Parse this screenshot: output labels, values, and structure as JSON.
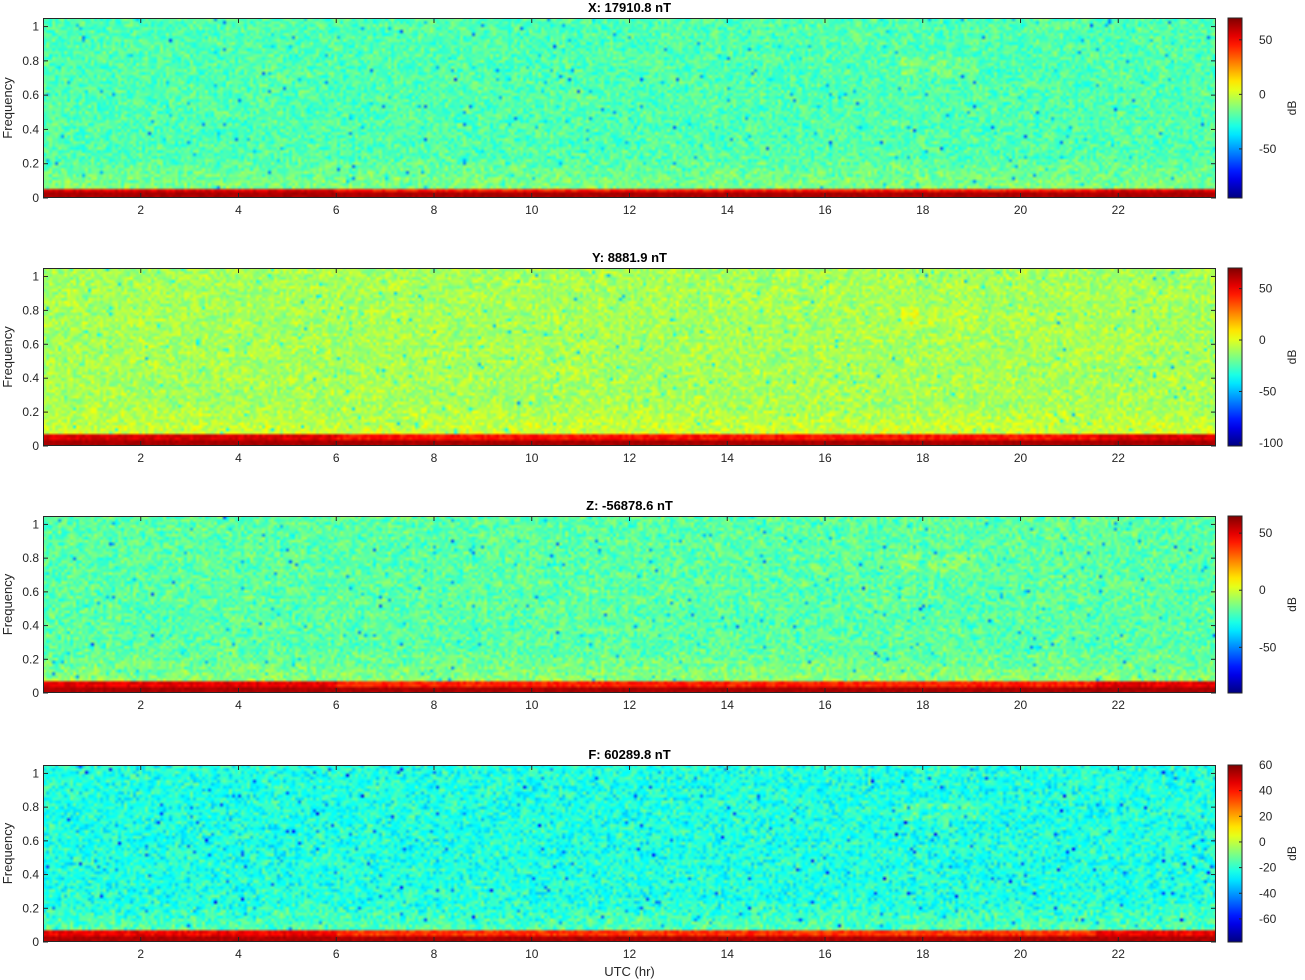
{
  "figure": {
    "xlabel": "UTC (hr)"
  },
  "chart_data": [
    {
      "type": "heatmap",
      "title": "X: 17910.8 nT",
      "xlabel": "",
      "ylabel": "Frequency",
      "xlim": [
        0,
        24
      ],
      "ylim": [
        0,
        1.05
      ],
      "xticks": [
        2,
        4,
        6,
        8,
        10,
        12,
        14,
        16,
        18,
        20,
        22
      ],
      "yticks": [
        0,
        0.2,
        0.4,
        0.6,
        0.8,
        1
      ],
      "colorbar": {
        "label": "dB",
        "clim": [
          -95,
          70
        ],
        "ticks": [
          -50,
          0,
          50
        ]
      },
      "colormap": "jet",
      "background_level_db": -20,
      "low_freq_band": {
        "top_freq": 0.06,
        "peak_db": 70
      }
    },
    {
      "type": "heatmap",
      "title": "Y: 8881.9 nT",
      "xlabel": "",
      "ylabel": "Frequency",
      "xlim": [
        0,
        24
      ],
      "ylim": [
        0,
        1.05
      ],
      "xticks": [
        2,
        4,
        6,
        8,
        10,
        12,
        14,
        16,
        18,
        20,
        22
      ],
      "yticks": [
        0,
        0.2,
        0.4,
        0.6,
        0.8,
        1
      ],
      "colorbar": {
        "label": "dB",
        "clim": [
          -103,
          70
        ],
        "ticks": [
          -100,
          -50,
          0,
          50
        ]
      },
      "colormap": "jet",
      "background_level_db": -10,
      "low_freq_band": {
        "top_freq": 0.07,
        "peak_db": 70
      }
    },
    {
      "type": "heatmap",
      "title": "Z: -56878.6 nT",
      "xlabel": "",
      "ylabel": "Frequency",
      "xlim": [
        0,
        24
      ],
      "ylim": [
        0,
        1.05
      ],
      "xticks": [
        2,
        4,
        6,
        8,
        10,
        12,
        14,
        16,
        18,
        20,
        22
      ],
      "yticks": [
        0,
        0.2,
        0.4,
        0.6,
        0.8,
        1
      ],
      "colorbar": {
        "label": "dB",
        "clim": [
          -90,
          65
        ],
        "ticks": [
          -50,
          0,
          50
        ]
      },
      "colormap": "jet",
      "background_level_db": -18,
      "low_freq_band": {
        "top_freq": 0.07,
        "peak_db": 65
      }
    },
    {
      "type": "heatmap",
      "title": "F: 60289.8 nT",
      "xlabel": "UTC (hr)",
      "ylabel": "Frequency",
      "xlim": [
        0,
        24
      ],
      "ylim": [
        0,
        1.05
      ],
      "xticks": [
        2,
        4,
        6,
        8,
        10,
        12,
        14,
        16,
        18,
        20,
        22
      ],
      "yticks": [
        0,
        0.2,
        0.4,
        0.6,
        0.8,
        1
      ],
      "colorbar": {
        "label": "dB",
        "clim": [
          -78,
          60
        ],
        "ticks": [
          -60,
          -40,
          -20,
          0,
          20,
          40,
          60
        ]
      },
      "colormap": "jet",
      "background_level_db": -22,
      "low_freq_band": {
        "top_freq": 0.07,
        "peak_db": 60
      }
    }
  ]
}
